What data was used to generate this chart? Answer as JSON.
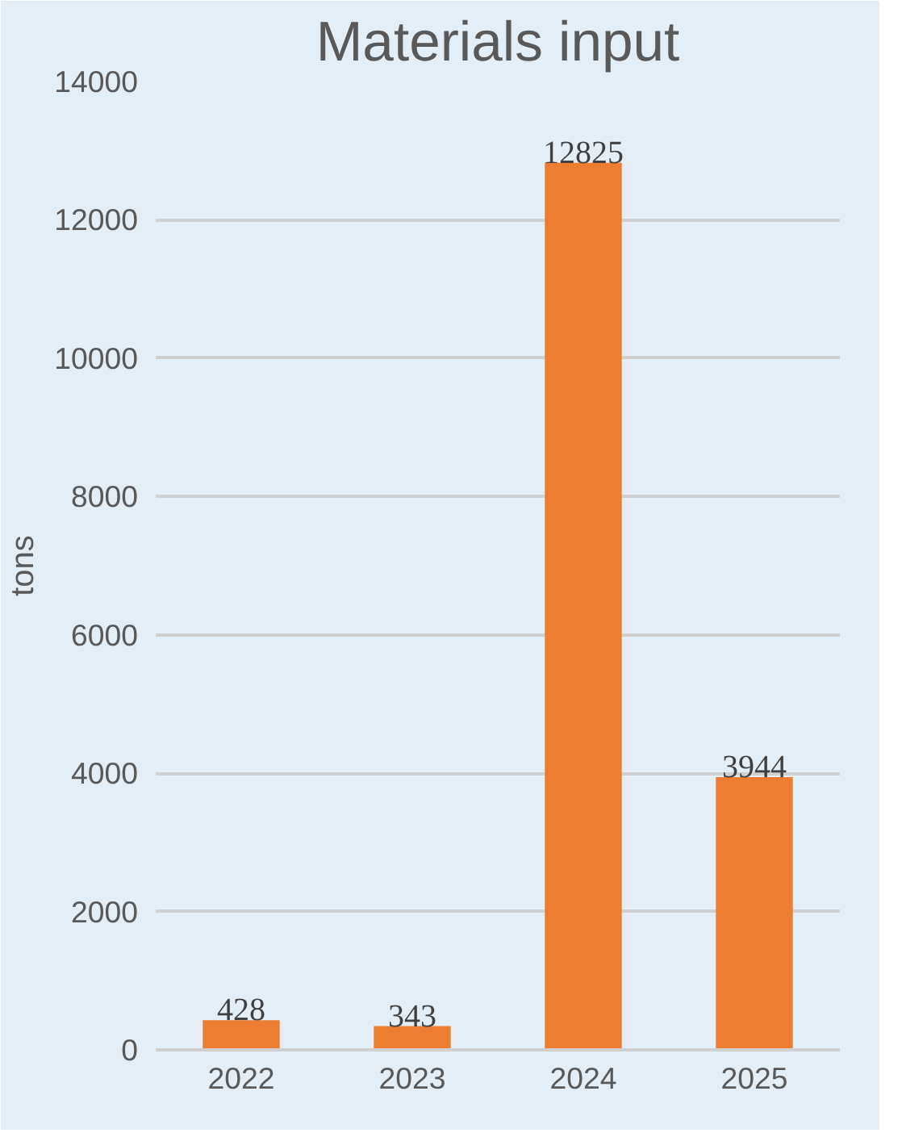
{
  "chart_data": {
    "type": "bar",
    "title": "Materials input",
    "ylabel": "tons",
    "categories": [
      "2022",
      "2023",
      "2024",
      "2025"
    ],
    "values": [
      428,
      343,
      12825,
      3944
    ],
    "color": "#ed7d31",
    "ylim": [
      0,
      14000
    ],
    "yticks": [
      0,
      2000,
      4000,
      6000,
      8000,
      10000,
      12000,
      14000
    ],
    "grid": "y",
    "data_labels": true
  }
}
